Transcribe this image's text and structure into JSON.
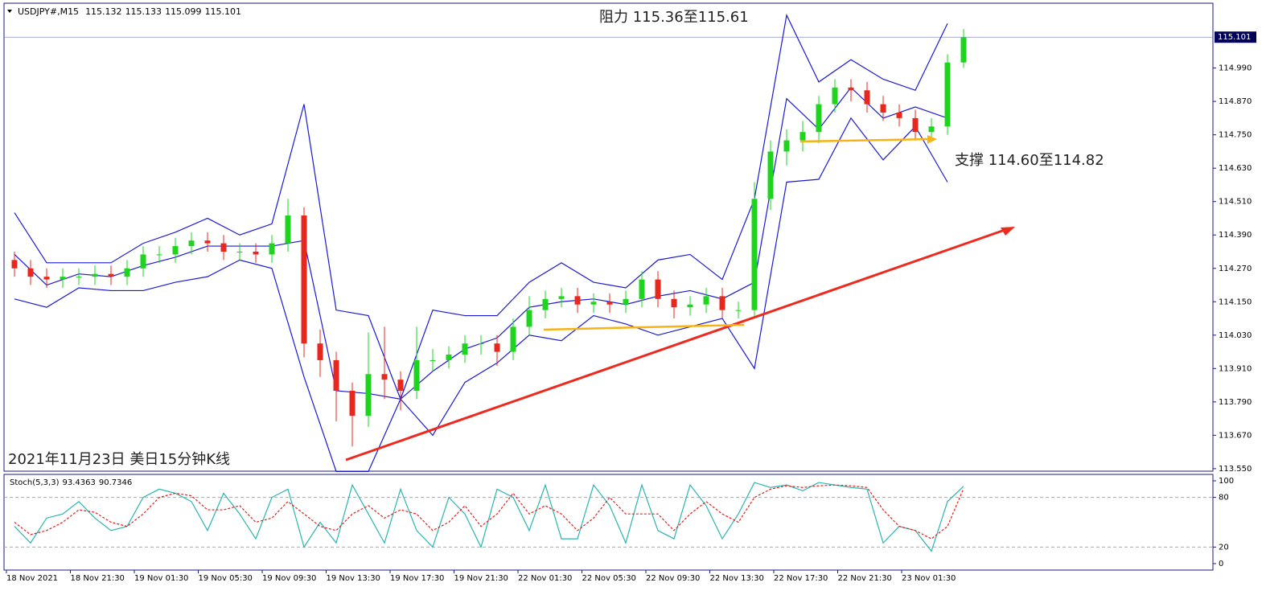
{
  "chart_data": [
    {
      "type": "candlestick",
      "symbol": "USDJPY#,M15",
      "header_values": [
        115.132,
        115.133,
        115.099,
        115.101
      ],
      "open": [
        114.3,
        114.27,
        114.24,
        114.23,
        114.24,
        114.24,
        114.25,
        114.24,
        114.27,
        114.32,
        114.32,
        114.35,
        114.37,
        114.36,
        114.33,
        114.33,
        114.32,
        114.36,
        114.46,
        114.0,
        113.94,
        113.83,
        113.74,
        113.89,
        113.87,
        113.83,
        113.94,
        113.94,
        113.96,
        114.0,
        114.0,
        113.97,
        114.06,
        114.12,
        114.16,
        114.17,
        114.14,
        114.15,
        114.14,
        114.16,
        114.23,
        114.16,
        114.13,
        114.14,
        114.17,
        114.12,
        114.12,
        114.52,
        114.69,
        114.73,
        114.76,
        114.86,
        114.92,
        114.91,
        114.86,
        114.83,
        114.81,
        114.76,
        114.78,
        115.01
      ],
      "high": [
        114.33,
        114.3,
        114.27,
        114.27,
        114.27,
        114.28,
        114.28,
        114.3,
        114.35,
        114.35,
        114.38,
        114.4,
        114.4,
        114.39,
        114.36,
        114.36,
        114.39,
        114.52,
        114.49,
        114.05,
        113.97,
        113.86,
        114.04,
        114.06,
        113.9,
        114.06,
        113.98,
        113.99,
        114.03,
        114.03,
        114.03,
        114.09,
        114.17,
        114.19,
        114.2,
        114.2,
        114.18,
        114.18,
        114.19,
        114.26,
        114.26,
        114.19,
        114.17,
        114.2,
        114.2,
        114.15,
        114.58,
        114.73,
        114.77,
        114.8,
        114.89,
        114.95,
        114.95,
        114.94,
        114.89,
        114.86,
        114.84,
        114.81,
        115.04,
        115.13
      ],
      "low": [
        114.24,
        114.21,
        114.2,
        114.2,
        114.21,
        114.21,
        114.21,
        114.21,
        114.24,
        114.29,
        114.29,
        114.32,
        114.33,
        114.3,
        114.3,
        114.29,
        114.29,
        114.33,
        113.95,
        113.88,
        113.72,
        113.63,
        113.7,
        113.8,
        113.76,
        113.8,
        113.9,
        113.91,
        113.93,
        113.96,
        113.92,
        113.94,
        114.03,
        114.09,
        114.13,
        114.11,
        114.11,
        114.11,
        114.11,
        114.13,
        114.13,
        114.09,
        114.1,
        114.11,
        114.09,
        114.09,
        114.09,
        114.48,
        114.64,
        114.69,
        114.72,
        114.83,
        114.87,
        114.83,
        114.8,
        114.78,
        114.73,
        114.73,
        114.75,
        114.99
      ],
      "close": [
        114.27,
        114.24,
        114.23,
        114.24,
        114.24,
        114.25,
        114.24,
        114.27,
        114.32,
        114.32,
        114.35,
        114.37,
        114.36,
        114.33,
        114.33,
        114.32,
        114.36,
        114.46,
        114.0,
        113.94,
        113.83,
        113.74,
        113.89,
        113.87,
        113.83,
        113.94,
        113.94,
        113.96,
        114.0,
        114.0,
        113.97,
        114.06,
        114.12,
        114.16,
        114.17,
        114.14,
        114.15,
        114.14,
        114.16,
        114.23,
        114.16,
        114.13,
        114.14,
        114.17,
        114.12,
        114.12,
        114.52,
        114.69,
        114.73,
        114.76,
        114.86,
        114.92,
        114.91,
        114.86,
        114.83,
        114.81,
        114.76,
        114.78,
        115.01,
        115.1
      ],
      "up_color": "#1ed41e",
      "down_color": "#e8281e",
      "bands": [
        {
          "color": "#1a1ad6",
          "values": [
            114.47,
            114.29,
            114.29,
            114.29,
            114.36,
            114.4,
            114.45,
            114.39,
            114.43,
            114.86,
            114.12,
            114.1,
            113.8,
            114.12,
            114.1,
            114.1,
            114.22,
            114.29,
            114.22,
            114.2,
            114.3,
            114.32,
            114.23,
            114.52,
            115.18,
            114.94,
            115.02,
            114.95,
            114.91,
            115.15
          ]
        },
        {
          "color": "#1a1ad6",
          "values": [
            114.32,
            114.21,
            114.25,
            114.24,
            114.28,
            114.31,
            114.35,
            114.35,
            114.35,
            114.37,
            113.83,
            113.82,
            113.8,
            113.9,
            113.98,
            114.02,
            114.13,
            114.15,
            114.16,
            114.14,
            114.17,
            114.19,
            114.16,
            114.22,
            114.88,
            114.77,
            114.92,
            114.81,
            114.85,
            114.81
          ]
        },
        {
          "color": "#1a1ad6",
          "values": [
            114.16,
            114.13,
            114.2,
            114.19,
            114.19,
            114.22,
            114.24,
            114.3,
            114.27,
            113.88,
            113.54,
            113.54,
            113.8,
            113.67,
            113.86,
            113.93,
            114.03,
            114.01,
            114.1,
            114.07,
            114.03,
            114.06,
            114.09,
            113.91,
            114.58,
            114.59,
            114.81,
            114.66,
            114.78,
            114.58
          ]
        }
      ],
      "last_price": 115.101,
      "ylim": [
        113.541,
        115.223
      ],
      "yticks": [
        {
          "value": 113.55,
          "label": "113.550"
        },
        {
          "value": 113.67,
          "label": "113.670"
        },
        {
          "value": 113.79,
          "label": "113.790"
        },
        {
          "value": 113.91,
          "label": "113.910"
        },
        {
          "value": 114.03,
          "label": "114.030"
        },
        {
          "value": 114.15,
          "label": "114.150"
        },
        {
          "value": 114.27,
          "label": "114.270"
        },
        {
          "value": 114.39,
          "label": "114.390"
        },
        {
          "value": 114.51,
          "label": "114.510"
        },
        {
          "value": 114.63,
          "label": "114.630"
        },
        {
          "value": 114.75,
          "label": "114.750"
        },
        {
          "value": 114.87,
          "label": "114.870"
        },
        {
          "value": 114.99,
          "label": "114.990"
        }
      ],
      "annotations": [
        "阻力 115.36至115.61",
        "支撑 114.60至114.82",
        "2021年11月23日 美日15分钟K线"
      ]
    },
    {
      "type": "line",
      "indicator": "Stoch(5,3,3)",
      "series": [
        {
          "color": "#2ab5b0",
          "values": [
            45,
            25,
            55,
            60,
            75,
            55,
            40,
            45,
            80,
            90,
            85,
            75,
            40,
            85,
            60,
            30,
            80,
            90,
            20,
            50,
            25,
            95,
            60,
            25,
            90,
            40,
            20,
            80,
            60,
            20,
            90,
            80,
            40,
            95,
            30,
            30,
            95,
            70,
            25,
            95,
            40,
            30,
            95,
            70,
            30,
            60,
            98,
            92,
            95,
            88,
            98,
            95,
            92,
            90,
            25,
            45,
            40,
            15,
            75,
            93.4363
          ]
        },
        {
          "color": "#e0201e",
          "dashed": true,
          "values": [
            50,
            35,
            40,
            50,
            65,
            62,
            50,
            45,
            60,
            80,
            85,
            82,
            65,
            65,
            70,
            50,
            55,
            75,
            60,
            45,
            40,
            60,
            70,
            55,
            65,
            60,
            40,
            50,
            70,
            45,
            60,
            85,
            60,
            70,
            60,
            40,
            55,
            80,
            60,
            60,
            60,
            40,
            60,
            75,
            60,
            50,
            80,
            90,
            94,
            92,
            94,
            95,
            94,
            92,
            65,
            45,
            40,
            30,
            45,
            90.7346
          ]
        }
      ],
      "ylim": [
        -7.8,
        107.8
      ],
      "yticks": [
        0,
        20,
        80,
        100
      ],
      "levels": [
        20,
        80
      ],
      "x_labels": [
        "18 Nov 2021",
        "18 Nov 21:30",
        "19 Nov 01:30",
        "19 Nov 05:30",
        "19 Nov 09:30",
        "19 Nov 13:30",
        "19 Nov 17:30",
        "19 Nov 21:30",
        "22 Nov 01:30",
        "22 Nov 05:30",
        "22 Nov 09:30",
        "22 Nov 13:30",
        "22 Nov 17:30",
        "22 Nov 21:30",
        "23 Nov 01:30"
      ]
    }
  ]
}
